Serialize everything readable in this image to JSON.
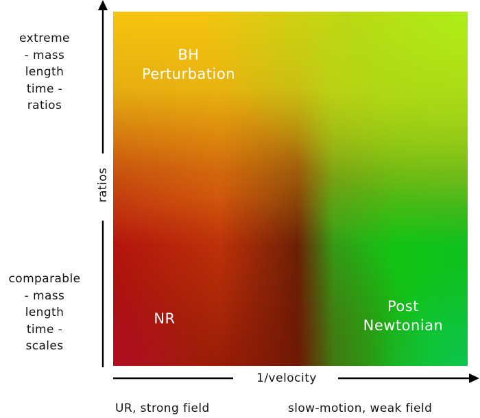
{
  "regions": {
    "bh_perturbation": "BH\nPerturbation",
    "nr": "NR",
    "post_newtonian": "Post\nNewtonian"
  },
  "y_axis": {
    "title": "ratios",
    "top_label": "extreme\n- mass\nlength\ntime -\nratios",
    "bottom_label": "comparable\n- mass\nlength\ntime -\nscales"
  },
  "x_axis": {
    "title": "1/velocity",
    "left_label": "UR, strong field",
    "right_label": "slow-motion, weak field"
  },
  "colors": {
    "strong_field": "#b8140e",
    "perturbation": "#f6c410",
    "weak_field": "#12c414",
    "text_on_plot": "#ffffff",
    "axis": "#000000"
  }
}
